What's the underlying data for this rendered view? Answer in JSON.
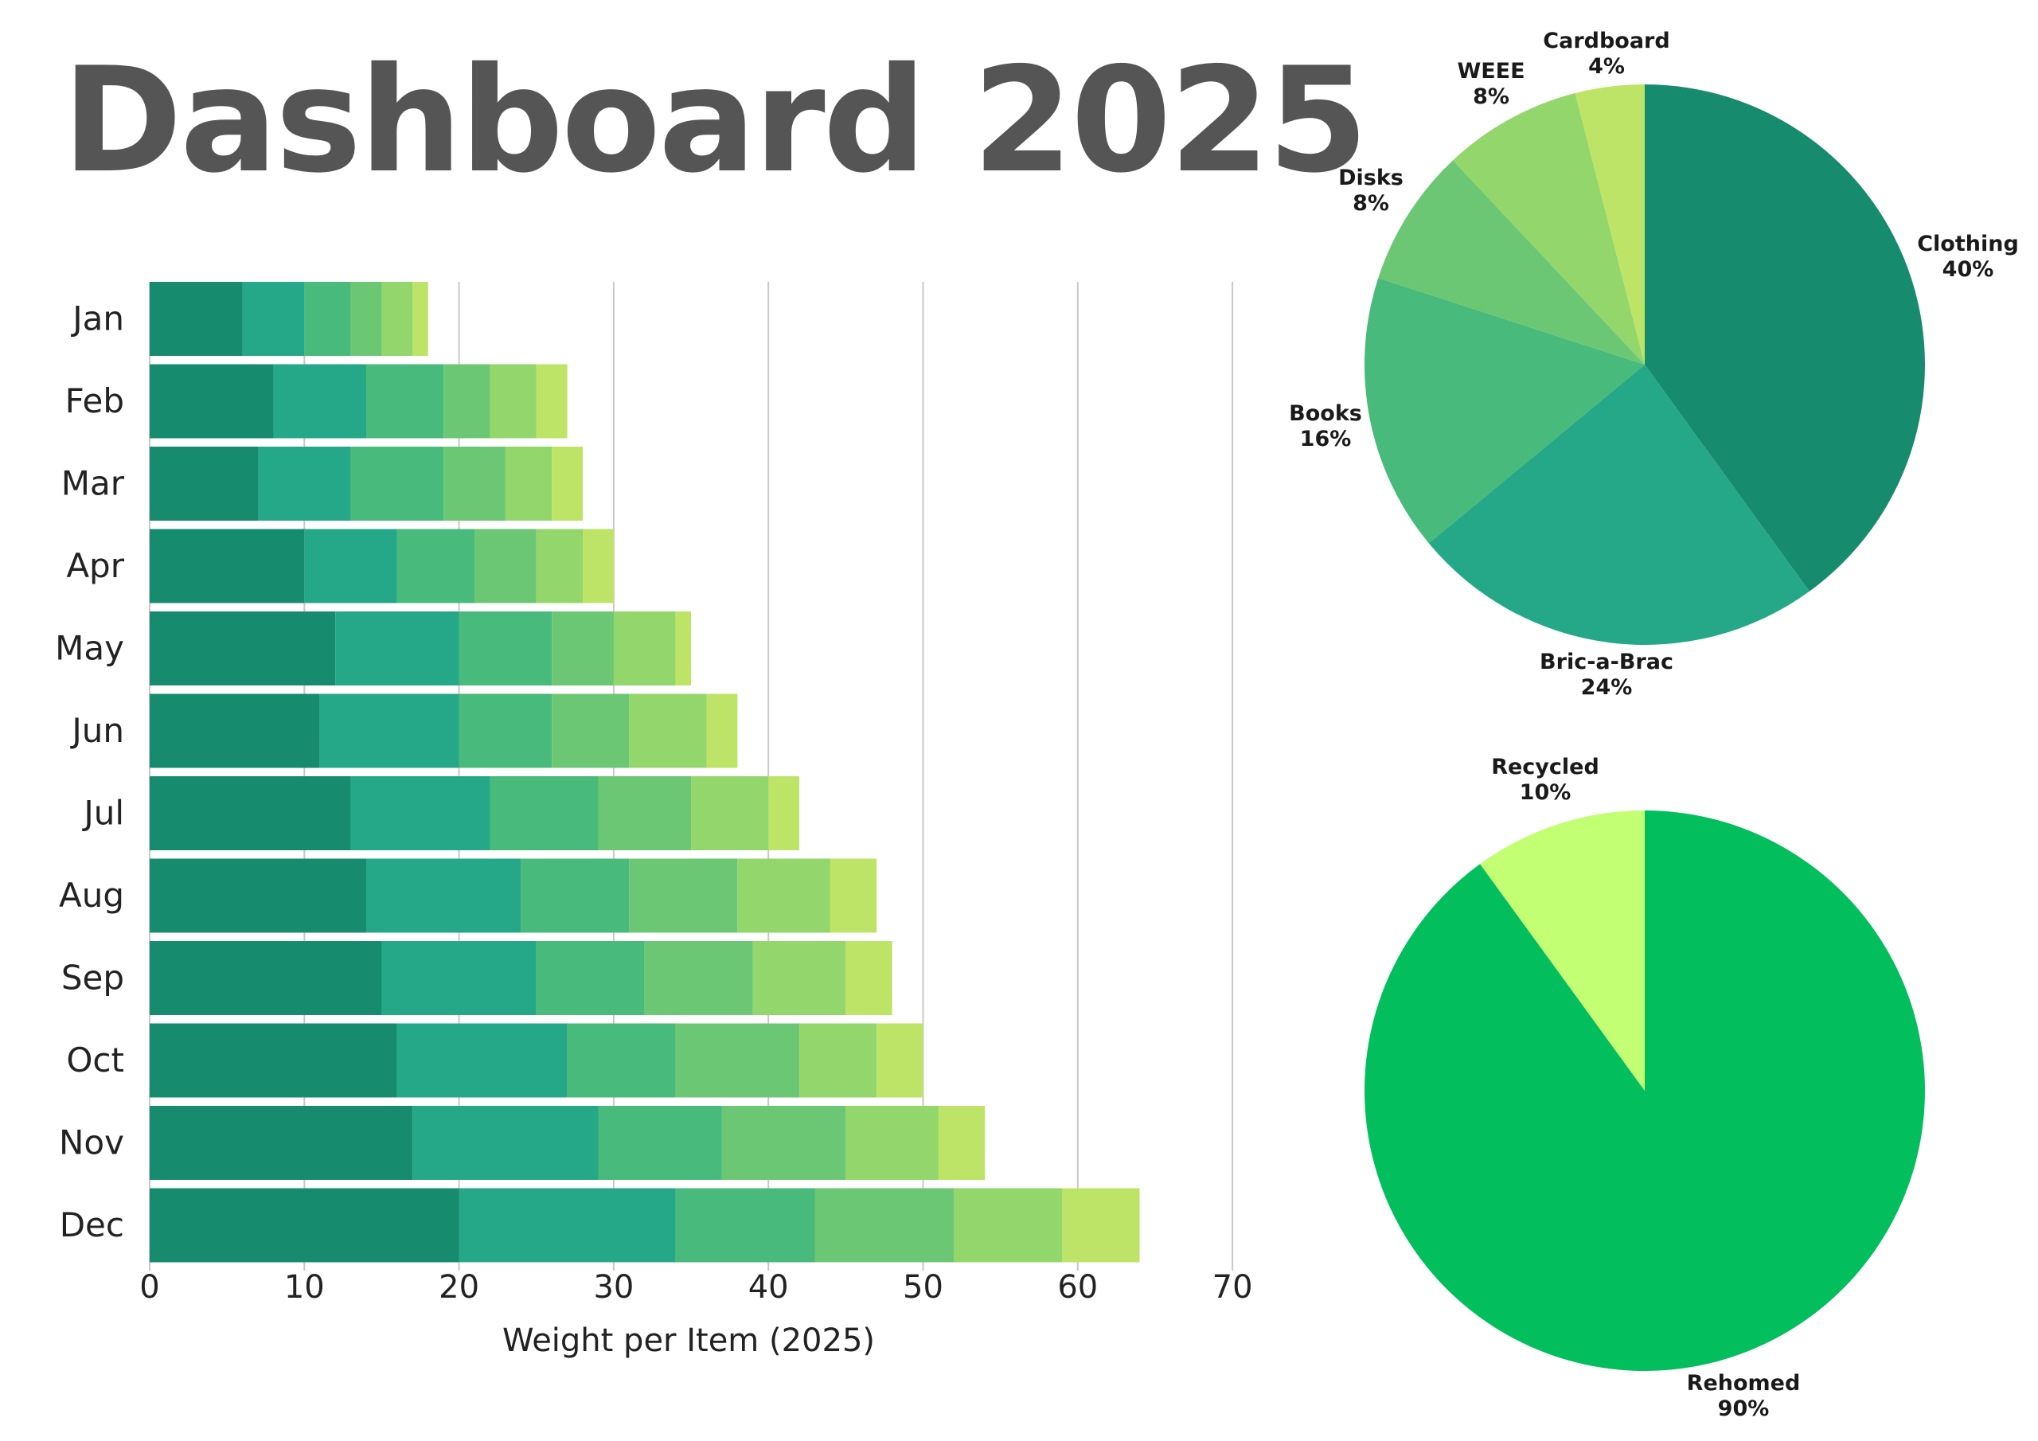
{
  "page_title": "Dashboard 2025",
  "colors": {
    "bar_segments": [
      "#178B6E",
      "#25A888",
      "#48BA7B",
      "#6CC774",
      "#93D66C",
      "#BDE466"
    ],
    "category_pie": [
      "#178B6E",
      "#25A888",
      "#48BA7B",
      "#6CC774",
      "#93D66C",
      "#BDE466"
    ],
    "outcome_pie": [
      "#03BE5C",
      "#C2FF73"
    ],
    "gridline": "#c8c8c8"
  },
  "chart_data": [
    {
      "type": "bar",
      "orientation": "horizontal",
      "stacked": true,
      "title": "",
      "xlabel": "Weight per Item (2025)",
      "ylabel": "",
      "xlim": [
        0,
        70
      ],
      "xticks": [
        "0",
        "10",
        "20",
        "30",
        "40",
        "50",
        "60",
        "70"
      ],
      "grid": true,
      "legend": "none",
      "categories": [
        "Jan",
        "Feb",
        "Mar",
        "Apr",
        "May",
        "Jun",
        "Jul",
        "Aug",
        "Sep",
        "Oct",
        "Nov",
        "Dec"
      ],
      "series": [
        {
          "values": [
            6,
            8,
            7,
            10,
            12,
            11,
            13,
            14,
            15,
            16,
            17,
            20
          ]
        },
        {
          "values": [
            4,
            6,
            6,
            6,
            8,
            9,
            9,
            10,
            10,
            11,
            12,
            14
          ]
        },
        {
          "values": [
            3,
            5,
            6,
            5,
            6,
            6,
            7,
            7,
            7,
            7,
            8,
            9
          ]
        },
        {
          "values": [
            2,
            3,
            4,
            4,
            4,
            5,
            6,
            7,
            7,
            8,
            8,
            9
          ]
        },
        {
          "values": [
            2,
            3,
            3,
            3,
            4,
            5,
            5,
            6,
            6,
            5,
            6,
            7
          ]
        },
        {
          "values": [
            1,
            2,
            2,
            2,
            1,
            2,
            2,
            3,
            3,
            3,
            3,
            5
          ]
        }
      ]
    },
    {
      "type": "pie",
      "slices": [
        {
          "label": "Clothing",
          "pct_label": "40%",
          "value": 40
        },
        {
          "label": "Bric-a-Brac",
          "pct_label": "24%",
          "value": 24
        },
        {
          "label": "Books",
          "pct_label": "16%",
          "value": 16
        },
        {
          "label": "Disks",
          "pct_label": "8%",
          "value": 8
        },
        {
          "label": "WEEE",
          "pct_label": "8%",
          "value": 8
        },
        {
          "label": "Cardboard",
          "pct_label": "4%",
          "value": 4
        }
      ]
    },
    {
      "type": "pie",
      "slices": [
        {
          "label": "Rehomed",
          "pct_label": "90%",
          "value": 90
        },
        {
          "label": "Recycled",
          "pct_label": "10%",
          "value": 10
        }
      ]
    }
  ]
}
